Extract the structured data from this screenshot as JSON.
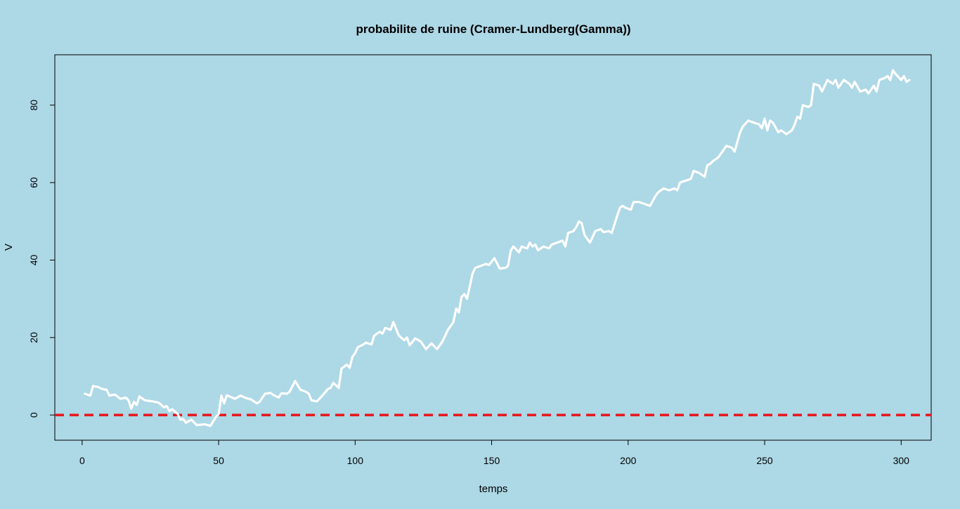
{
  "chart_data": {
    "type": "line",
    "title": "probabilite de ruine (Cramer-Lundberg(Gamma))",
    "xlabel": "temps",
    "ylabel": "V",
    "xlim": [
      -10,
      311
    ],
    "ylim": [
      -6.5,
      93
    ],
    "x_ticks": [
      0,
      50,
      100,
      150,
      200,
      250,
      300
    ],
    "y_ticks": [
      0,
      20,
      40,
      60,
      80
    ],
    "grid": false,
    "legend": "none",
    "colors": {
      "background": "#add8e6",
      "series": "#ffffff",
      "threshold": "#e8141a",
      "axes": "#000000"
    },
    "series": [
      {
        "line_style": "solid",
        "points": [
          [
            1,
            5.5
          ],
          [
            3,
            5.0
          ],
          [
            4,
            7.5
          ],
          [
            6,
            7.2
          ],
          [
            7,
            6.8
          ],
          [
            9,
            6.5
          ],
          [
            10,
            5.0
          ],
          [
            12,
            5.3
          ],
          [
            14,
            4.2
          ],
          [
            16,
            4.5
          ],
          [
            17,
            3.8
          ],
          [
            18,
            1.6
          ],
          [
            19,
            3.4
          ],
          [
            20,
            2.6
          ],
          [
            21,
            4.8
          ],
          [
            23,
            3.8
          ],
          [
            26,
            3.5
          ],
          [
            28,
            3.2
          ],
          [
            30,
            2.0
          ],
          [
            31,
            2.3
          ],
          [
            32,
            1.0
          ],
          [
            33,
            1.5
          ],
          [
            35,
            0.3
          ],
          [
            36,
            -1.2
          ],
          [
            37,
            -1.0
          ],
          [
            38,
            -2.0
          ],
          [
            40,
            -1.2
          ],
          [
            42,
            -2.6
          ],
          [
            45,
            -2.4
          ],
          [
            47,
            -2.8
          ],
          [
            49,
            -0.5
          ],
          [
            50,
            0.2
          ],
          [
            51,
            5.0
          ],
          [
            52,
            3.0
          ],
          [
            53,
            5.1
          ],
          [
            56,
            4.2
          ],
          [
            58,
            5.0
          ],
          [
            60,
            4.4
          ],
          [
            62,
            4.0
          ],
          [
            64,
            3.0
          ],
          [
            65,
            3.4
          ],
          [
            67,
            5.5
          ],
          [
            69,
            5.7
          ],
          [
            70,
            5.2
          ],
          [
            72,
            4.5
          ],
          [
            73,
            5.6
          ],
          [
            75,
            5.5
          ],
          [
            76,
            6.0
          ],
          [
            78,
            8.8
          ],
          [
            80,
            6.5
          ],
          [
            82,
            6.0
          ],
          [
            83,
            5.5
          ],
          [
            84,
            3.8
          ],
          [
            86,
            3.5
          ],
          [
            88,
            5.0
          ],
          [
            90,
            6.7
          ],
          [
            91,
            7.0
          ],
          [
            92,
            8.3
          ],
          [
            94,
            7.0
          ],
          [
            95,
            12.0
          ],
          [
            96,
            12.5
          ],
          [
            97,
            13.0
          ],
          [
            98,
            12.2
          ],
          [
            99,
            15.0
          ],
          [
            100,
            16.0
          ],
          [
            101,
            17.5
          ],
          [
            103,
            18.2
          ],
          [
            104,
            18.7
          ],
          [
            106,
            18.2
          ],
          [
            107,
            20.5
          ],
          [
            109,
            21.5
          ],
          [
            110,
            21.0
          ],
          [
            111,
            22.5
          ],
          [
            113,
            22.0
          ],
          [
            114,
            24.0
          ],
          [
            116,
            20.5
          ],
          [
            118,
            19.3
          ],
          [
            119,
            20.0
          ],
          [
            120,
            18.0
          ],
          [
            122,
            19.8
          ],
          [
            124,
            19.0
          ],
          [
            126,
            17.0
          ],
          [
            128,
            18.5
          ],
          [
            130,
            17.0
          ],
          [
            132,
            19.0
          ],
          [
            134,
            22.0
          ],
          [
            136,
            24.0
          ],
          [
            137,
            27.5
          ],
          [
            138,
            26.5
          ],
          [
            139,
            30.5
          ],
          [
            140,
            31.2
          ],
          [
            141,
            30.0
          ],
          [
            143,
            36.5
          ],
          [
            144,
            38.0
          ],
          [
            146,
            38.5
          ],
          [
            148,
            39.0
          ],
          [
            149,
            38.7
          ],
          [
            151,
            40.5
          ],
          [
            153,
            37.8
          ],
          [
            155,
            38.0
          ],
          [
            156,
            38.5
          ],
          [
            157,
            42.5
          ],
          [
            158,
            43.5
          ],
          [
            160,
            42.0
          ],
          [
            161,
            43.5
          ],
          [
            163,
            43.0
          ],
          [
            164,
            44.5
          ],
          [
            165,
            43.5
          ],
          [
            166,
            44.0
          ],
          [
            167,
            42.5
          ],
          [
            169,
            43.5
          ],
          [
            171,
            43.0
          ],
          [
            172,
            44.0
          ],
          [
            174,
            44.5
          ],
          [
            176,
            45.0
          ],
          [
            177,
            43.5
          ],
          [
            178,
            47.0
          ],
          [
            180,
            47.5
          ],
          [
            181,
            48.5
          ],
          [
            182,
            50.0
          ],
          [
            183,
            49.5
          ],
          [
            184,
            46.5
          ],
          [
            186,
            44.5
          ],
          [
            187,
            46.0
          ],
          [
            188,
            47.5
          ],
          [
            190,
            48.0
          ],
          [
            191,
            47.2
          ],
          [
            193,
            47.5
          ],
          [
            194,
            47.0
          ],
          [
            196,
            51.5
          ],
          [
            197,
            53.5
          ],
          [
            198,
            54.0
          ],
          [
            199,
            53.5
          ],
          [
            201,
            53.0
          ],
          [
            202,
            55.0
          ],
          [
            204,
            55.0
          ],
          [
            206,
            54.5
          ],
          [
            208,
            54.0
          ],
          [
            210,
            56.5
          ],
          [
            211,
            57.5
          ],
          [
            212,
            58.0
          ],
          [
            213,
            58.5
          ],
          [
            215,
            58.0
          ],
          [
            217,
            58.5
          ],
          [
            218,
            58.0
          ],
          [
            219,
            60.0
          ],
          [
            221,
            60.5
          ],
          [
            222,
            60.7
          ],
          [
            223,
            61.0
          ],
          [
            224,
            63.0
          ],
          [
            226,
            62.5
          ],
          [
            228,
            61.5
          ],
          [
            229,
            64.5
          ],
          [
            230,
            64.8
          ],
          [
            231,
            65.5
          ],
          [
            233,
            66.5
          ],
          [
            234,
            67.5
          ],
          [
            235,
            68.5
          ],
          [
            236,
            69.5
          ],
          [
            238,
            69.0
          ],
          [
            239,
            68.0
          ],
          [
            241,
            73.0
          ],
          [
            242,
            74.5
          ],
          [
            244,
            76.0
          ],
          [
            246,
            75.5
          ],
          [
            248,
            75.0
          ],
          [
            249,
            74.0
          ],
          [
            250,
            76.5
          ],
          [
            251,
            73.5
          ],
          [
            252,
            76.0
          ],
          [
            253,
            75.5
          ],
          [
            255,
            73.0
          ],
          [
            256,
            73.5
          ],
          [
            258,
            72.5
          ],
          [
            260,
            73.5
          ],
          [
            261,
            75.0
          ],
          [
            262,
            77.0
          ],
          [
            263,
            76.5
          ],
          [
            264,
            80.0
          ],
          [
            266,
            79.5
          ],
          [
            267,
            80.0
          ],
          [
            268,
            85.5
          ],
          [
            270,
            85.0
          ],
          [
            271,
            83.5
          ],
          [
            273,
            86.5
          ],
          [
            275,
            85.5
          ],
          [
            276,
            86.5
          ],
          [
            277,
            84.5
          ],
          [
            279,
            86.5
          ],
          [
            281,
            85.5
          ],
          [
            282,
            84.5
          ],
          [
            283,
            86.0
          ],
          [
            285,
            83.5
          ],
          [
            287,
            84.0
          ],
          [
            288,
            83.0
          ],
          [
            290,
            85.0
          ],
          [
            291,
            83.5
          ],
          [
            292,
            86.5
          ],
          [
            294,
            87.0
          ],
          [
            295,
            87.5
          ],
          [
            296,
            86.5
          ],
          [
            297,
            89.0
          ],
          [
            298,
            88.0
          ],
          [
            300,
            86.5
          ],
          [
            301,
            87.5
          ],
          [
            302,
            86.0
          ],
          [
            303,
            86.5
          ]
        ]
      },
      {
        "line_style": "dashed",
        "points": [
          [
            -10,
            0
          ],
          [
            311,
            0
          ]
        ]
      }
    ]
  }
}
